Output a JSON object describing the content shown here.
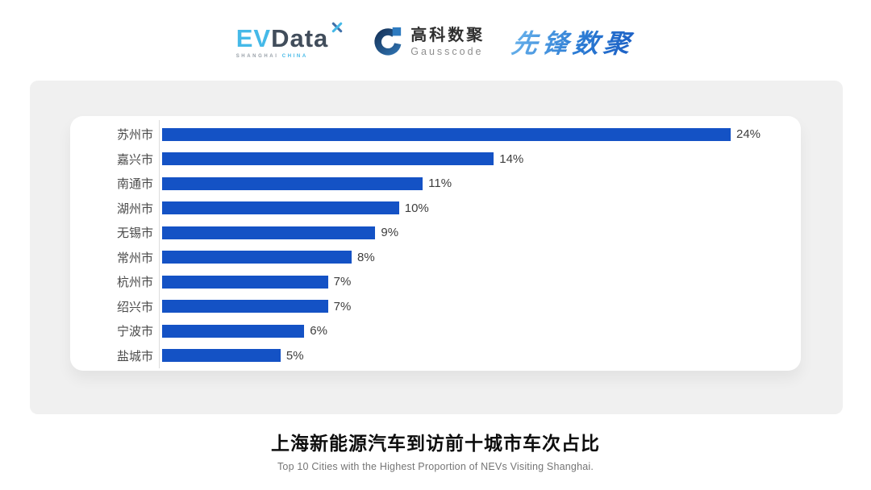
{
  "header": {
    "evdata": {
      "ev": "EV",
      "data": "Data",
      "tagline_left": "SHANGHAI",
      "tagline_right": "CHINA"
    },
    "gausscode": {
      "cn": "高科数聚",
      "en": "Gausscode"
    },
    "xianfeng": {
      "text": "先锋数聚"
    }
  },
  "chart_data": {
    "type": "bar",
    "orientation": "horizontal",
    "categories": [
      "苏州市",
      "嘉兴市",
      "南通市",
      "湖州市",
      "无锡市",
      "常州市",
      "杭州市",
      "绍兴市",
      "宁波市",
      "盐城市"
    ],
    "values": [
      24,
      14,
      11,
      10,
      9,
      8,
      7,
      7,
      6,
      5
    ],
    "value_suffix": "%",
    "xlim": [
      0,
      24
    ],
    "grid": false,
    "legend": "none",
    "bar_color": "#1452C5",
    "title": "上海新能源汽车到访前十城市车次占比",
    "subtitle": "Top 10 Cities with the Highest Proportion of  NEVs Visiting Shanghai."
  },
  "colors": {
    "bar": "#1452C5",
    "panel_bg": "#F0F0F0",
    "evdata_blue": "#45B9E8",
    "evdata_dark": "#414D5B",
    "gausscode_navy": "#1B4471",
    "gausscode_blue": "#2E7BC0",
    "xianfeng_blue": "#2E7FD6",
    "label": "#4A4A4A",
    "value": "#3D3D3D",
    "subtitle": "#757575",
    "axis": "#DCDCDC"
  }
}
